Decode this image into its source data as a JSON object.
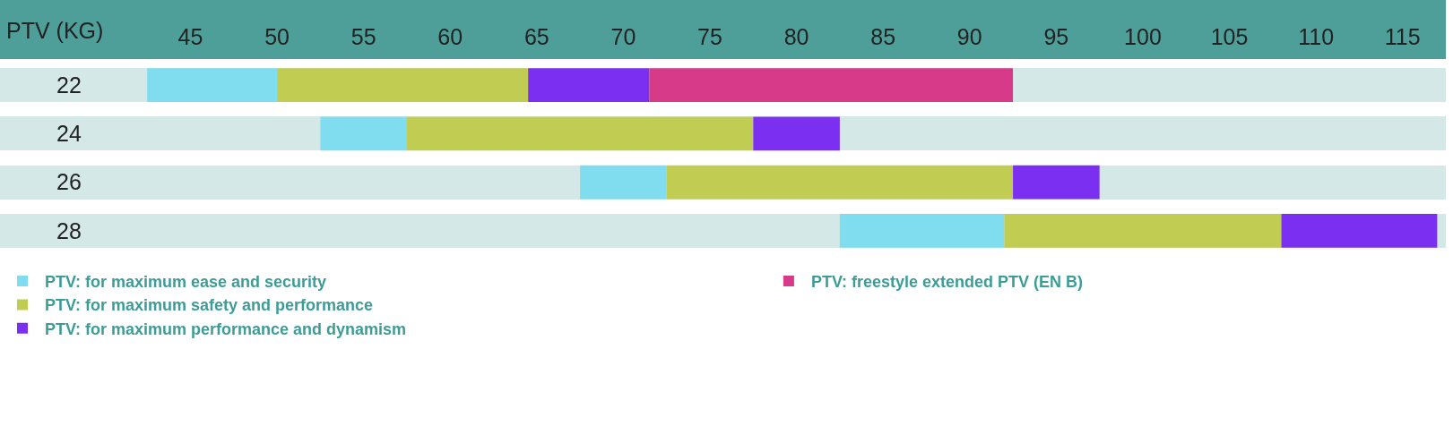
{
  "chart_data": {
    "type": "bar",
    "orientation": "horizontal",
    "xlabel": "PTV (KG)",
    "categories": [
      "22",
      "24",
      "26",
      "28"
    ],
    "series": [
      {
        "name": "PTV: for maximum ease and security",
        "color": "#80dcef",
        "base": [
          42.5,
          52.5,
          67.5,
          82.5
        ],
        "values": [
          7.5,
          5,
          5,
          9.5
        ]
      },
      {
        "name": "PTV: for maximum safety and performance",
        "color": "#c0cc52",
        "base": [
          50,
          57.5,
          72.5,
          92
        ],
        "values": [
          14.5,
          20,
          20,
          16
        ]
      },
      {
        "name": "PTV: for maximum performance and dynamism",
        "color": "#7b2ff0",
        "base": [
          64.5,
          77.5,
          92.5,
          108
        ],
        "values": [
          7,
          5,
          5,
          9
        ]
      },
      {
        "name": "PTV: freestyle extended PTV (EN B)",
        "color": "#d63a88",
        "base": [
          71.5,
          null,
          null,
          null
        ],
        "values": [
          21,
          null,
          null,
          null
        ]
      }
    ],
    "xlim": [
      34,
      117.5
    ],
    "xticks": [
      45,
      50,
      55,
      60,
      65,
      70,
      75,
      80,
      85,
      90,
      95,
      100,
      105,
      110,
      115
    ],
    "grid": false,
    "legend": "bottom"
  }
}
